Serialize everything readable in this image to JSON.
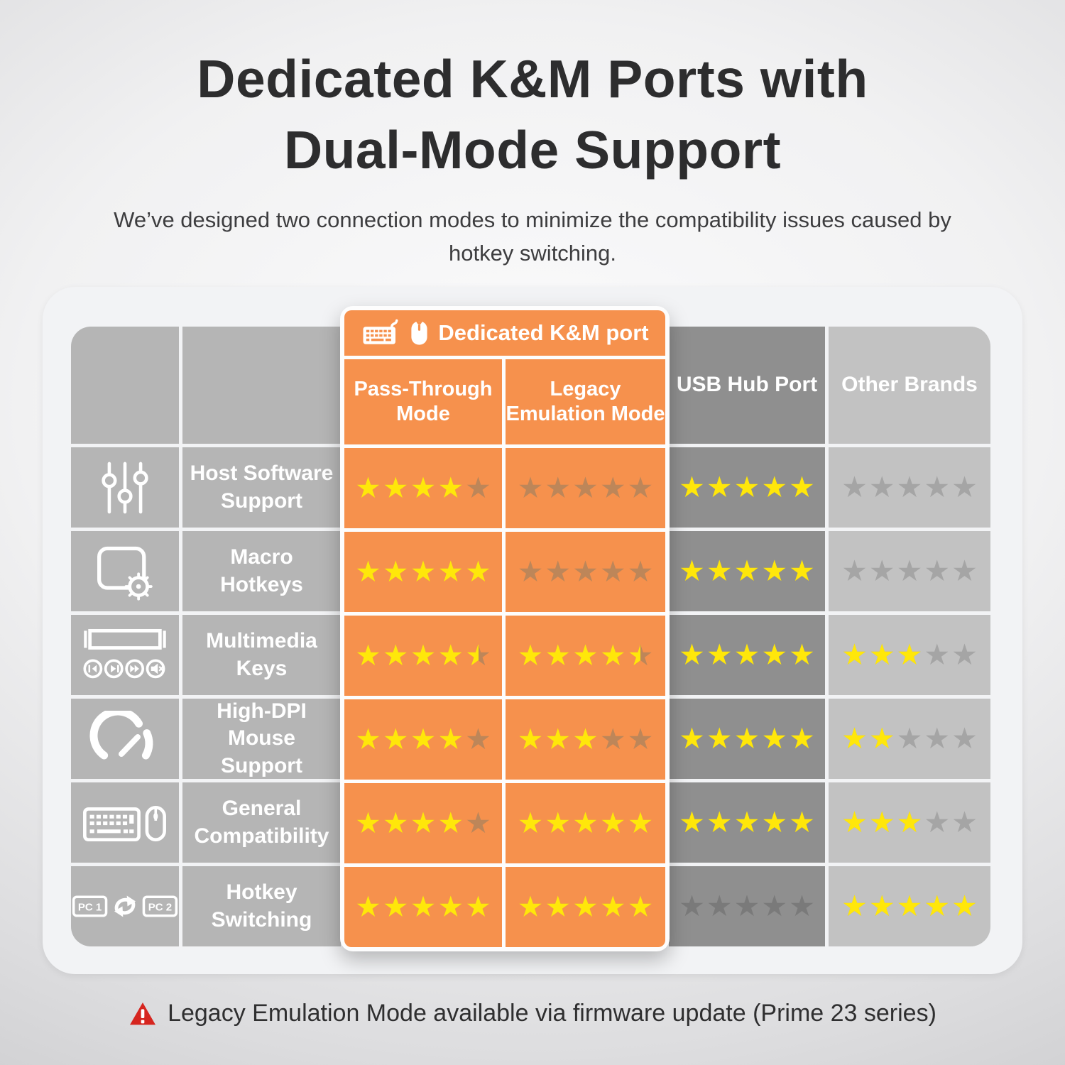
{
  "page": {
    "title_line1": "Dedicated K&M Ports with",
    "title_line2": "Dual-Mode Support",
    "subtitle": "We’ve designed two connection modes to minimize the compatibility issues caused by hotkey switching.",
    "footnote": "Legacy Emulation Mode available via firmware update (Prime 23 series)"
  },
  "table": {
    "group": {
      "label": "Dedicated K&M port",
      "icons": [
        "keyboard-solid-icon",
        "mouse-solid-icon"
      ]
    },
    "columns": [
      {
        "key": "pass_through",
        "label": "Pass-Through Mode",
        "group": "Dedicated K&M port"
      },
      {
        "key": "legacy",
        "label": "Legacy Emulation Mode",
        "group": "Dedicated K&M port"
      },
      {
        "key": "usb_hub",
        "label": "USB Hub Port"
      },
      {
        "key": "other",
        "label": "Other Brands"
      }
    ],
    "max_stars": 5,
    "rows": [
      {
        "feature": "Host Software Support",
        "icon": "mixer-sliders-icon",
        "ratings": {
          "pass_through": 4,
          "legacy": 0,
          "usb_hub": 5,
          "other": 0
        }
      },
      {
        "feature": "Macro Hotkeys",
        "icon": "keycap-gear-icon",
        "ratings": {
          "pass_through": 5,
          "legacy": 0,
          "usb_hub": 5,
          "other": 0
        }
      },
      {
        "feature": "Multimedia Keys",
        "icon": "media-keys-icon",
        "ratings": {
          "pass_through": 4.5,
          "legacy": 4.5,
          "usb_hub": 5,
          "other": 3
        }
      },
      {
        "feature": "High-DPI Mouse Support",
        "icon": "gauge-icon",
        "ratings": {
          "pass_through": 4,
          "legacy": 3,
          "usb_hub": 5,
          "other": 2
        }
      },
      {
        "feature": "General Compatibility",
        "icon": "keyboard-mouse-icon",
        "ratings": {
          "pass_through": 4,
          "legacy": 5,
          "usb_hub": 5,
          "other": 3
        }
      },
      {
        "feature": "Hotkey Switching",
        "icon": "pc-switch-icon",
        "ratings": {
          "pass_through": 5,
          "legacy": 5,
          "usb_hub": 0,
          "other": 5
        }
      }
    ]
  },
  "chart_data": {
    "type": "table",
    "title": "Dedicated K&M Ports with Dual-Mode Support",
    "subtitle": "We’ve designed two connection modes to minimize the compatibility issues caused by hotkey switching.",
    "rating_scale": "stars 0-5",
    "columns": [
      "Pass-Through Mode",
      "Legacy Emulation Mode",
      "USB Hub Port",
      "Other Brands"
    ],
    "column_group": {
      "label": "Dedicated K&M port",
      "covers": [
        "Pass-Through Mode",
        "Legacy Emulation Mode"
      ]
    },
    "rows": [
      "Host Software Support",
      "Macro Hotkeys",
      "Multimedia Keys",
      "High-DPI Mouse Support",
      "General Compatibility",
      "Hotkey Switching"
    ],
    "values": [
      [
        4,
        0,
        5,
        0
      ],
      [
        5,
        0,
        5,
        0
      ],
      [
        4.5,
        4.5,
        5,
        3
      ],
      [
        4,
        3,
        5,
        2
      ],
      [
        4,
        5,
        5,
        3
      ],
      [
        5,
        5,
        0,
        5
      ]
    ],
    "footnote": "Legacy Emulation Mode available via firmware update (Prime 23 series)"
  },
  "colors": {
    "accent_orange": "#f6914d",
    "star_yellow": "#ffe70a",
    "star_dim_on_orange": "#bd8659",
    "star_dim_on_dark_gray": "#7a7a7a",
    "star_dim_on_light_gray": "#a5a5a5",
    "column_gray": "#b5b5b5",
    "column_dark_gray": "#8f8f8f",
    "column_light_gray": "#c2c2c2",
    "card_background": "#f2f3f5",
    "warning_red": "#d6251f",
    "title_text": "#2d2d2e"
  }
}
